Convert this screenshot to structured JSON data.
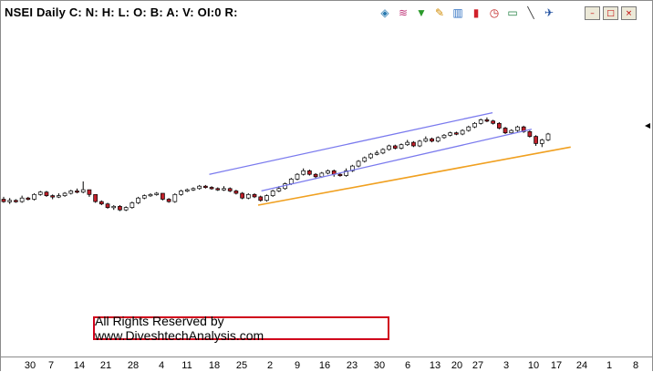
{
  "window": {
    "title": "NSEI Daily C: N: H: L: O: B: A: V: OI:0 R:",
    "toolbar": [
      {
        "name": "layers-icon",
        "glyph": "◈",
        "color": "#2a7ab0"
      },
      {
        "name": "wave-icon",
        "glyph": "≋",
        "color": "#c0387a"
      },
      {
        "name": "funnel-icon",
        "glyph": "▼",
        "color": "#2a9a2a"
      },
      {
        "name": "pencil-icon",
        "glyph": "✎",
        "color": "#d08a00"
      },
      {
        "name": "bar-chart-icon",
        "glyph": "▥",
        "color": "#2c6ec0"
      },
      {
        "name": "candlestick-icon",
        "glyph": "▮",
        "color": "#d0202a"
      },
      {
        "name": "clock-icon",
        "glyph": "◷",
        "color": "#c02020"
      },
      {
        "name": "cash-icon",
        "glyph": "▭",
        "color": "#208040"
      },
      {
        "name": "trendline-tool-icon",
        "glyph": "╲",
        "color": "#404040"
      },
      {
        "name": "pin-icon",
        "glyph": "✈",
        "color": "#2050a0"
      }
    ],
    "buttons": {
      "minimize": "–",
      "maximize": "□",
      "close": "×"
    }
  },
  "watermark": "All Rights Reserved by www.DiveshtechAnalysis.com",
  "axis_labels": [
    "30",
    "7",
    "14",
    "21",
    "28",
    "4",
    "11",
    "18",
    "25",
    "2",
    "9",
    "16",
    "23",
    "30",
    "6",
    "13",
    "20",
    "27",
    "3",
    "10",
    "17",
    "24",
    "1",
    "8"
  ],
  "chart_data": {
    "type": "candlestick",
    "title": "NSEI Daily",
    "colors": {
      "up": "#ffffff",
      "down": "#c0202a",
      "channel": "#7a7aee",
      "support": "#f0a020"
    },
    "candles": [
      [
        5,
        3,
        7,
        2
      ],
      [
        3,
        4,
        6,
        1
      ],
      [
        4,
        3,
        5,
        2
      ],
      [
        3,
        6,
        8,
        2
      ],
      [
        6,
        5,
        7,
        4
      ],
      [
        5,
        9,
        10,
        4
      ],
      [
        9,
        11,
        12,
        8
      ],
      [
        11,
        8,
        12,
        7
      ],
      [
        8,
        7,
        9,
        5
      ],
      [
        7,
        8,
        10,
        6
      ],
      [
        8,
        10,
        11,
        7
      ],
      [
        10,
        12,
        13,
        9
      ],
      [
        12,
        11,
        14,
        10
      ],
      [
        11,
        13,
        20,
        10
      ],
      [
        13,
        9,
        13,
        7
      ],
      [
        9,
        3,
        9,
        2
      ],
      [
        3,
        1,
        4,
        0
      ],
      [
        1,
        -2,
        2,
        -3
      ],
      [
        -2,
        -1,
        0,
        -4
      ],
      [
        -1,
        -4,
        0,
        -5
      ],
      [
        -4,
        -2,
        -1,
        -5
      ],
      [
        -2,
        2,
        3,
        -3
      ],
      [
        2,
        6,
        7,
        1
      ],
      [
        6,
        8,
        9,
        5
      ],
      [
        8,
        9,
        10,
        7
      ],
      [
        9,
        10,
        11,
        8
      ],
      [
        10,
        5,
        10,
        4
      ],
      [
        5,
        3,
        6,
        2
      ],
      [
        3,
        9,
        10,
        2
      ],
      [
        9,
        12,
        13,
        8
      ],
      [
        12,
        13,
        14,
        11
      ],
      [
        13,
        14,
        15,
        12
      ],
      [
        14,
        16,
        17,
        13
      ],
      [
        16,
        15,
        17,
        14
      ],
      [
        15,
        14,
        16,
        13
      ],
      [
        14,
        13,
        15,
        12
      ],
      [
        13,
        14,
        16,
        12
      ],
      [
        14,
        12,
        15,
        11
      ],
      [
        12,
        10,
        13,
        9
      ],
      [
        10,
        6,
        11,
        5
      ],
      [
        6,
        9,
        10,
        5
      ],
      [
        9,
        7,
        10,
        6
      ],
      [
        7,
        4,
        8,
        3
      ],
      [
        4,
        8,
        9,
        3
      ],
      [
        8,
        12,
        13,
        7
      ],
      [
        12,
        14,
        16,
        11
      ],
      [
        14,
        18,
        19,
        13
      ],
      [
        18,
        22,
        23,
        17
      ],
      [
        22,
        26,
        27,
        21
      ],
      [
        26,
        29,
        31,
        25
      ],
      [
        29,
        26,
        30,
        25
      ],
      [
        26,
        24,
        27,
        22
      ],
      [
        24,
        27,
        28,
        23
      ],
      [
        27,
        29,
        30,
        26
      ],
      [
        29,
        26,
        30,
        24
      ],
      [
        26,
        25,
        27,
        24
      ],
      [
        25,
        29,
        31,
        24
      ],
      [
        29,
        33,
        34,
        28
      ],
      [
        33,
        37,
        38,
        32
      ],
      [
        37,
        40,
        41,
        36
      ],
      [
        40,
        43,
        44,
        39
      ],
      [
        43,
        44,
        46,
        42
      ],
      [
        44,
        47,
        48,
        43
      ],
      [
        47,
        50,
        51,
        46
      ],
      [
        50,
        48,
        51,
        47
      ],
      [
        48,
        51,
        52,
        47
      ],
      [
        51,
        53,
        55,
        50
      ],
      [
        53,
        50,
        54,
        49
      ],
      [
        50,
        54,
        55,
        49
      ],
      [
        54,
        56,
        58,
        53
      ],
      [
        56,
        54,
        57,
        53
      ],
      [
        54,
        57,
        58,
        53
      ],
      [
        57,
        59,
        60,
        56
      ],
      [
        59,
        61,
        62,
        58
      ],
      [
        61,
        60,
        62,
        59
      ],
      [
        60,
        63,
        64,
        59
      ],
      [
        63,
        66,
        67,
        62
      ],
      [
        66,
        69,
        70,
        65
      ],
      [
        69,
        72,
        73,
        68
      ],
      [
        72,
        71,
        74,
        70
      ],
      [
        71,
        69,
        72,
        68
      ],
      [
        69,
        65,
        70,
        64
      ],
      [
        65,
        61,
        66,
        60
      ],
      [
        61,
        63,
        64,
        60
      ],
      [
        63,
        66,
        67,
        62
      ],
      [
        66,
        62,
        67,
        61
      ],
      [
        62,
        58,
        63,
        57
      ],
      [
        58,
        52,
        59,
        50
      ],
      [
        52,
        55,
        56,
        49
      ],
      [
        55,
        60,
        61,
        54
      ]
    ],
    "channel_upper": {
      "from": [
        0.32,
        26
      ],
      "to": [
        0.755,
        78
      ]
    },
    "channel_lower": {
      "from": [
        0.4,
        12
      ],
      "to": [
        0.815,
        64
      ]
    },
    "support": {
      "from": [
        0.395,
        0
      ],
      "to": [
        0.875,
        49
      ]
    },
    "y_range": [
      -10,
      90
    ]
  }
}
